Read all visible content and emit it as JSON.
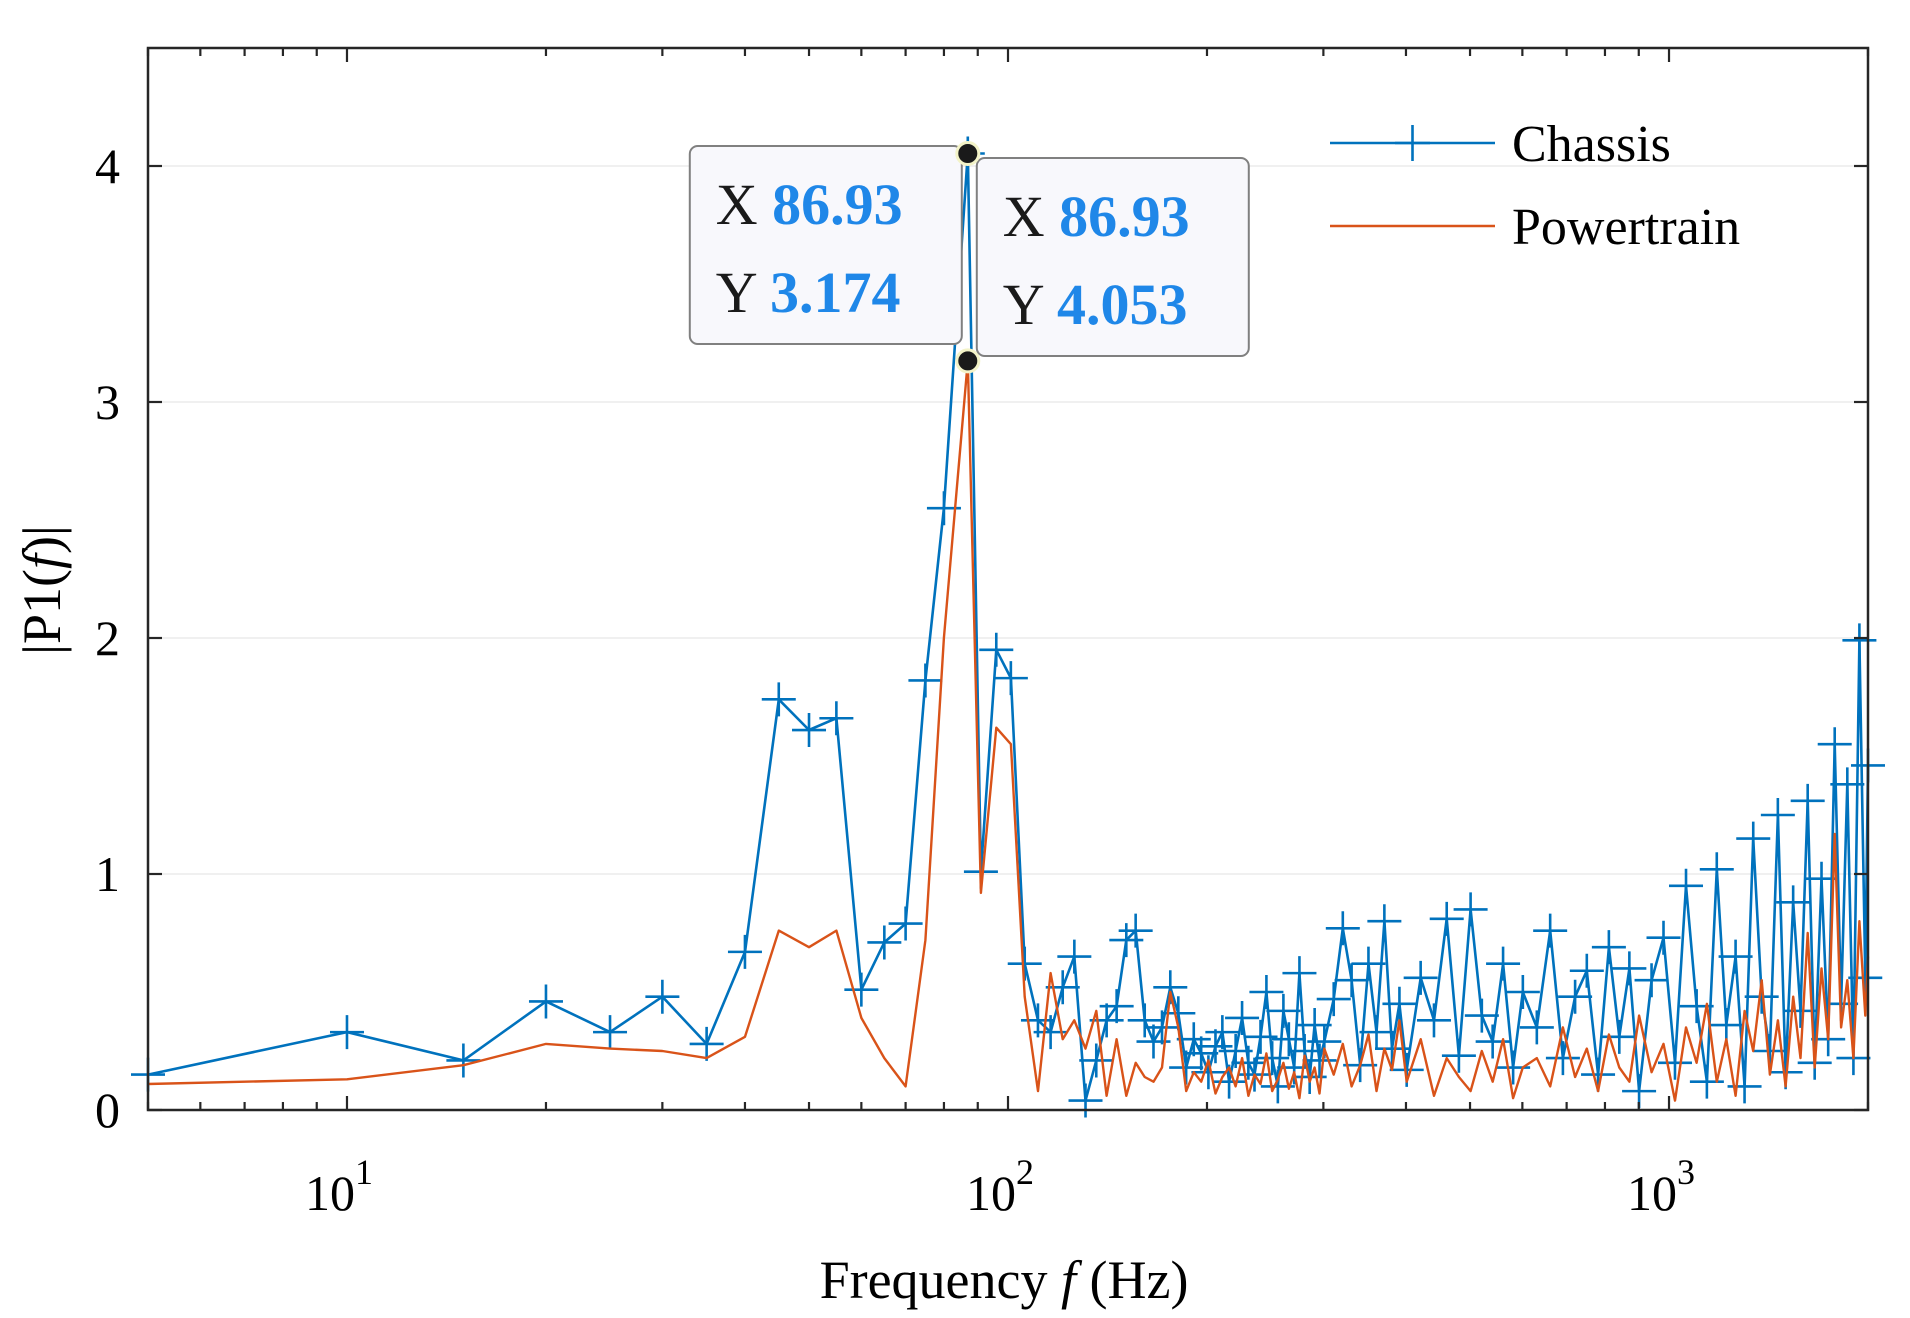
{
  "chart_data": {
    "type": "line",
    "xscale": "log",
    "xlim": [
      5,
      2000
    ],
    "ylim": [
      0,
      4.5
    ],
    "xlabel_prefix": "Frequency ",
    "xlabel_var": "f",
    "xlabel_suffix": " (Hz)",
    "ylabel_prefix": "|P1(",
    "ylabel_var": "f",
    "ylabel_suffix": ")|",
    "x_ticks": [
      {
        "value": 10,
        "base": "10",
        "exp": "1"
      },
      {
        "value": 100,
        "base": "10",
        "exp": "2"
      },
      {
        "value": 1000,
        "base": "10",
        "exp": "3"
      }
    ],
    "y_ticks": [
      0,
      1,
      2,
      3,
      4
    ],
    "y_tick_labels": [
      "0",
      "1",
      "2",
      "3",
      "4"
    ],
    "legend_position": "top-right",
    "series": [
      {
        "name": "Chassis",
        "color": "#0072BD",
        "marker": "+",
        "x": [
          5,
          10,
          15,
          20,
          25,
          30,
          35,
          40,
          45,
          50,
          55,
          60,
          65,
          70,
          75,
          80,
          86.93,
          91,
          96,
          101,
          106,
          111,
          116,
          121,
          126,
          131,
          136,
          141,
          146,
          151,
          156,
          161,
          166,
          171,
          176,
          181,
          186,
          191,
          196,
          201,
          206,
          211,
          216,
          221,
          226,
          231,
          236,
          241,
          246,
          251,
          256,
          261,
          266,
          271,
          276,
          281,
          286,
          291,
          296,
          301,
          311,
          321,
          331,
          341,
          351,
          361,
          371,
          381,
          391,
          401,
          421,
          441,
          461,
          481,
          501,
          521,
          541,
          561,
          581,
          601,
          631,
          661,
          691,
          721,
          751,
          781,
          811,
          841,
          871,
          901,
          941,
          981,
          1021,
          1061,
          1101,
          1141,
          1181,
          1221,
          1261,
          1301,
          1341,
          1381,
          1421,
          1461,
          1501,
          1541,
          1581,
          1621,
          1661,
          1701,
          1741,
          1781,
          1821,
          1861,
          1901,
          1941,
          1981,
          2000
        ],
        "y": [
          0.15,
          0.33,
          0.21,
          0.46,
          0.33,
          0.48,
          0.28,
          0.67,
          1.74,
          1.61,
          1.66,
          0.51,
          0.71,
          0.79,
          1.82,
          2.55,
          4.053,
          1.01,
          1.95,
          1.83,
          0.62,
          0.38,
          0.33,
          0.52,
          0.65,
          0.04,
          0.21,
          0.38,
          0.44,
          0.72,
          0.76,
          0.38,
          0.29,
          0.35,
          0.52,
          0.41,
          0.18,
          0.3,
          0.24,
          0.16,
          0.27,
          0.33,
          0.12,
          0.25,
          0.39,
          0.2,
          0.15,
          0.31,
          0.5,
          0.22,
          0.1,
          0.42,
          0.3,
          0.18,
          0.58,
          0.25,
          0.14,
          0.36,
          0.21,
          0.29,
          0.47,
          0.77,
          0.55,
          0.19,
          0.62,
          0.33,
          0.8,
          0.26,
          0.45,
          0.17,
          0.56,
          0.38,
          0.81,
          0.23,
          0.85,
          0.4,
          0.29,
          0.62,
          0.18,
          0.5,
          0.35,
          0.76,
          0.22,
          0.48,
          0.59,
          0.15,
          0.69,
          0.31,
          0.6,
          0.08,
          0.55,
          0.73,
          0.2,
          0.95,
          0.44,
          0.12,
          1.02,
          0.36,
          0.65,
          0.1,
          1.15,
          0.48,
          0.25,
          1.25,
          0.16,
          0.88,
          0.42,
          1.31,
          0.2,
          0.98,
          0.3,
          1.55,
          0.45,
          1.38,
          0.22,
          1.99,
          0.56,
          1.46
        ]
      },
      {
        "name": "Powertrain",
        "color": "#D95319",
        "marker": "none",
        "x": [
          5,
          10,
          15,
          20,
          25,
          30,
          35,
          40,
          45,
          50,
          55,
          60,
          65,
          70,
          75,
          80,
          86.93,
          91,
          96,
          101,
          106,
          111,
          116,
          121,
          126,
          131,
          136,
          141,
          146,
          151,
          156,
          161,
          166,
          171,
          176,
          181,
          186,
          191,
          196,
          201,
          206,
          211,
          216,
          221,
          226,
          231,
          236,
          241,
          246,
          251,
          256,
          261,
          266,
          271,
          276,
          281,
          286,
          291,
          296,
          301,
          311,
          321,
          331,
          341,
          351,
          361,
          371,
          381,
          391,
          401,
          421,
          441,
          461,
          481,
          501,
          521,
          541,
          561,
          581,
          601,
          631,
          661,
          691,
          721,
          751,
          781,
          811,
          841,
          871,
          901,
          941,
          981,
          1021,
          1061,
          1101,
          1141,
          1181,
          1221,
          1261,
          1301,
          1341,
          1381,
          1421,
          1461,
          1501,
          1541,
          1581,
          1621,
          1661,
          1701,
          1741,
          1781,
          1821,
          1861,
          1901,
          1941,
          1981,
          2000
        ],
        "y": [
          0.11,
          0.13,
          0.19,
          0.28,
          0.26,
          0.25,
          0.22,
          0.31,
          0.76,
          0.69,
          0.76,
          0.39,
          0.22,
          0.1,
          0.72,
          2.0,
          3.174,
          0.92,
          1.62,
          1.55,
          0.48,
          0.08,
          0.58,
          0.3,
          0.38,
          0.26,
          0.42,
          0.06,
          0.3,
          0.06,
          0.2,
          0.14,
          0.12,
          0.18,
          0.5,
          0.35,
          0.08,
          0.16,
          0.12,
          0.21,
          0.07,
          0.14,
          0.18,
          0.1,
          0.22,
          0.06,
          0.15,
          0.11,
          0.24,
          0.08,
          0.13,
          0.2,
          0.09,
          0.16,
          0.05,
          0.23,
          0.12,
          0.18,
          0.07,
          0.26,
          0.15,
          0.28,
          0.1,
          0.19,
          0.32,
          0.08,
          0.26,
          0.17,
          0.38,
          0.12,
          0.3,
          0.06,
          0.22,
          0.14,
          0.08,
          0.25,
          0.12,
          0.3,
          0.05,
          0.18,
          0.22,
          0.1,
          0.35,
          0.14,
          0.26,
          0.08,
          0.32,
          0.18,
          0.12,
          0.4,
          0.16,
          0.28,
          0.04,
          0.35,
          0.2,
          0.45,
          0.12,
          0.3,
          0.06,
          0.42,
          0.25,
          0.55,
          0.15,
          0.38,
          0.1,
          0.48,
          0.22,
          0.75,
          0.18,
          0.6,
          0.3,
          1.17,
          0.35,
          0.55,
          0.22,
          0.8,
          0.4,
          0.65
        ]
      }
    ],
    "datatips": [
      {
        "x_label": "X",
        "y_label": "Y",
        "x_value": "86.93",
        "y_value": "3.174",
        "x": 86.93,
        "y": 3.174,
        "box_side": "left"
      },
      {
        "x_label": "X",
        "y_label": "Y",
        "x_value": "86.93",
        "y_value": "4.053",
        "x": 86.93,
        "y": 4.053,
        "box_side": "right"
      }
    ],
    "datatip_value_color": "#1F87E8"
  }
}
